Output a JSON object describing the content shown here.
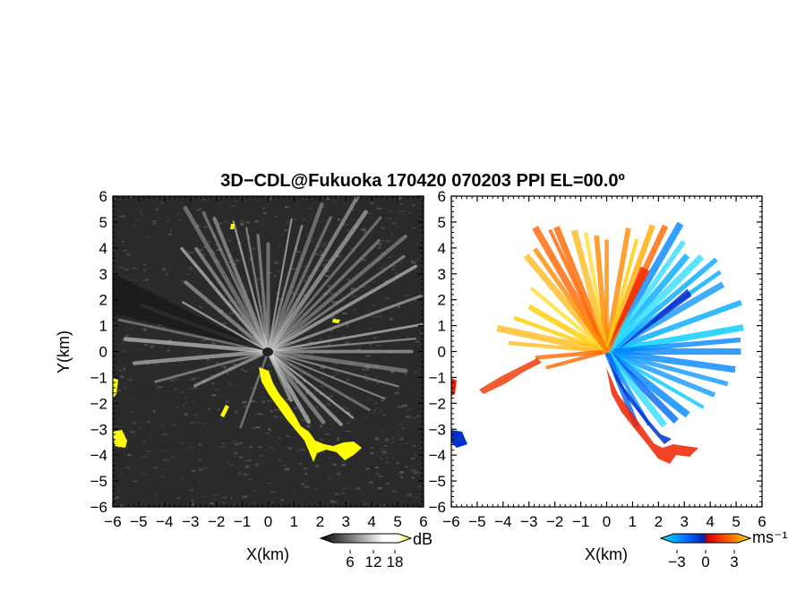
{
  "title": "3D−CDL@Fukuoka 170420 070203 PPI EL=00.0º",
  "colors": {
    "echo": "#ffff00",
    "background_left": "#2a2a2a",
    "background_right": "#ffffff"
  },
  "chart_data": [
    {
      "type": "heatmap",
      "panel": "left",
      "quantity": "reflectivity",
      "xlabel": "X(km)",
      "ylabel": "Y(km)",
      "xlim": [
        -6,
        6
      ],
      "ylim": [
        -6,
        6
      ],
      "xticks": [
        "−6",
        "−5",
        "−4",
        "−3",
        "−2",
        "−1",
        "0",
        "1",
        "2",
        "3",
        "4",
        "5",
        "6"
      ],
      "yticks": [
        "6",
        "5",
        "4",
        "3",
        "2",
        "1",
        "0",
        "−1",
        "−2",
        "−3",
        "−4",
        "−5",
        "−6"
      ],
      "colorbar": {
        "ticks": [
          "6",
          "12",
          "18"
        ],
        "unit": "dB",
        "colors": [
          "#000000",
          "#ffffff",
          "#ffff00"
        ]
      }
    },
    {
      "type": "heatmap",
      "panel": "right",
      "quantity": "doppler velocity",
      "xlabel": "X(km)",
      "xlim": [
        -6,
        6
      ],
      "ylim": [
        -6,
        6
      ],
      "xticks": [
        "−6",
        "−5",
        "−4",
        "−3",
        "−2",
        "−1",
        "0",
        "1",
        "2",
        "3",
        "4",
        "5",
        "6"
      ],
      "yticks": [
        "6",
        "5",
        "4",
        "3",
        "2",
        "1",
        "0",
        "−1",
        "−2",
        "−3",
        "−4",
        "−5",
        "−6"
      ],
      "colorbar": {
        "ticks": [
          "−3",
          "0",
          "3"
        ],
        "unit": "ms⁻¹",
        "colors": [
          "#00ccff",
          "#0033cc",
          "#ff3300",
          "#ffcc00"
        ]
      }
    }
  ]
}
